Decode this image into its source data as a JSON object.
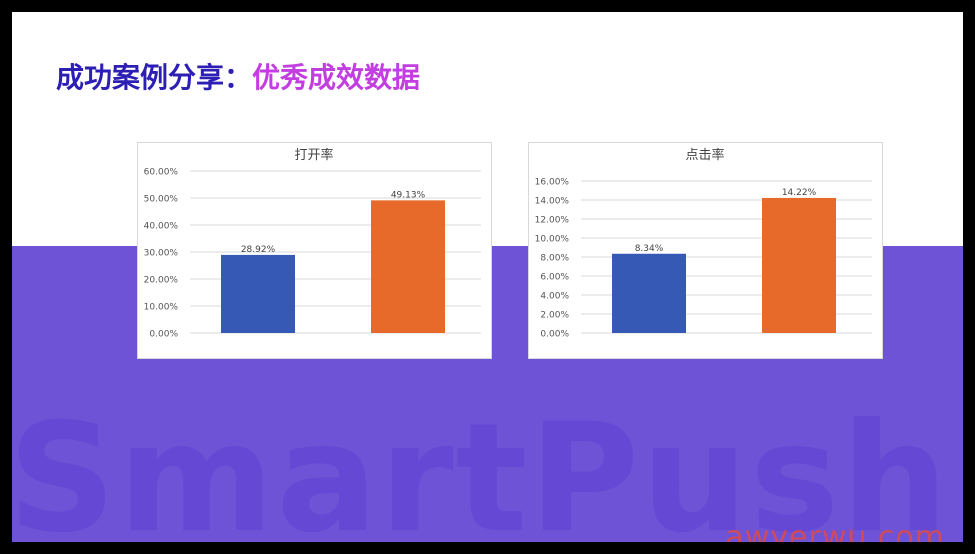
{
  "slide": {
    "title_part1": "成功案例分享：",
    "title_part2": "优秀成效数据",
    "watermark": "SmartPush",
    "site_mark": "awyerwu.com",
    "colors": {
      "band": "#6e53d6",
      "bar_blue": "#3659b5",
      "bar_orange": "#e86a2a"
    }
  },
  "chart_data": [
    {
      "type": "bar",
      "title": "打开率",
      "categories": [
        "",
        ""
      ],
      "values": [
        28.92,
        49.13
      ],
      "value_labels": [
        "28.92%",
        "49.13%"
      ],
      "colors": [
        "#3659b5",
        "#e86a2a"
      ],
      "ylim": [
        0,
        60
      ],
      "yticks": [
        "0.00%",
        "10.00%",
        "20.00%",
        "30.00%",
        "40.00%",
        "50.00%",
        "60.00%"
      ],
      "grid": true
    },
    {
      "type": "bar",
      "title": "点击率",
      "categories": [
        "",
        ""
      ],
      "values": [
        8.34,
        14.22
      ],
      "value_labels": [
        "8.34%",
        "14.22%"
      ],
      "colors": [
        "#3659b5",
        "#e86a2a"
      ],
      "ylim": [
        0,
        16
      ],
      "yticks": [
        "0.00%",
        "2.00%",
        "4.00%",
        "6.00%",
        "8.00%",
        "10.00%",
        "12.00%",
        "14.00%",
        "16.00%"
      ],
      "grid": true
    }
  ]
}
